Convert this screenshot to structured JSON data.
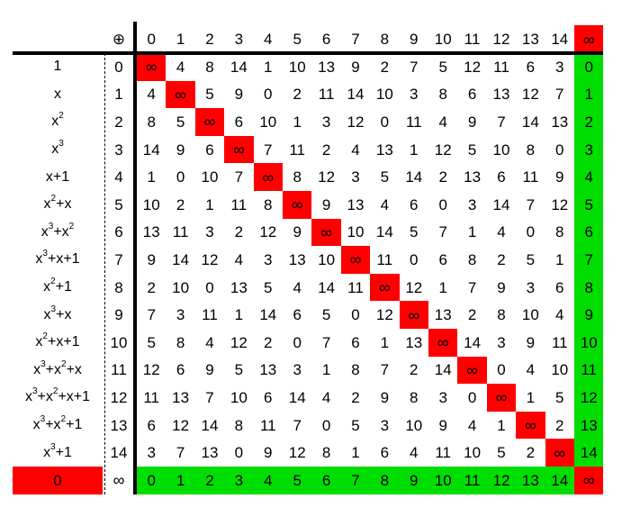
{
  "table": {
    "operator_symbol": "⊕",
    "infinity_symbol": "∞",
    "header_columns": [
      "0",
      "1",
      "2",
      "3",
      "4",
      "5",
      "6",
      "7",
      "8",
      "9",
      "10",
      "11",
      "12",
      "13",
      "14",
      "∞"
    ],
    "rows": [
      {
        "poly": "1",
        "index": "0",
        "cells": [
          "∞",
          "4",
          "8",
          "14",
          "1",
          "10",
          "13",
          "9",
          "2",
          "7",
          "5",
          "12",
          "11",
          "6",
          "3"
        ],
        "last": "0"
      },
      {
        "poly": "x",
        "index": "1",
        "cells": [
          "4",
          "∞",
          "5",
          "9",
          "0",
          "2",
          "11",
          "14",
          "10",
          "3",
          "8",
          "6",
          "13",
          "12",
          "7"
        ],
        "last": "1"
      },
      {
        "poly": "x^2",
        "index": "2",
        "cells": [
          "8",
          "5",
          "∞",
          "6",
          "10",
          "1",
          "3",
          "12",
          "0",
          "11",
          "4",
          "9",
          "7",
          "14",
          "13"
        ],
        "last": "2"
      },
      {
        "poly": "x^3",
        "index": "3",
        "cells": [
          "14",
          "9",
          "6",
          "∞",
          "7",
          "11",
          "2",
          "4",
          "13",
          "1",
          "12",
          "5",
          "10",
          "8",
          "0"
        ],
        "last": "3"
      },
      {
        "poly": "x+1",
        "index": "4",
        "cells": [
          "1",
          "0",
          "10",
          "7",
          "∞",
          "8",
          "12",
          "3",
          "5",
          "14",
          "2",
          "13",
          "6",
          "11",
          "9"
        ],
        "last": "4"
      },
      {
        "poly": "x^2+x",
        "index": "5",
        "cells": [
          "10",
          "2",
          "1",
          "11",
          "8",
          "∞",
          "9",
          "13",
          "4",
          "6",
          "0",
          "3",
          "14",
          "7",
          "12"
        ],
        "last": "5"
      },
      {
        "poly": "x^3+x^2",
        "index": "6",
        "cells": [
          "13",
          "11",
          "3",
          "2",
          "12",
          "9",
          "∞",
          "10",
          "14",
          "5",
          "7",
          "1",
          "4",
          "0",
          "8"
        ],
        "last": "6"
      },
      {
        "poly": "x^3+x+1",
        "index": "7",
        "cells": [
          "9",
          "14",
          "12",
          "4",
          "3",
          "13",
          "10",
          "∞",
          "11",
          "0",
          "6",
          "8",
          "2",
          "5",
          "1"
        ],
        "last": "7"
      },
      {
        "poly": "x^2+1",
        "index": "8",
        "cells": [
          "2",
          "10",
          "0",
          "13",
          "5",
          "4",
          "14",
          "11",
          "∞",
          "12",
          "1",
          "7",
          "9",
          "3",
          "6"
        ],
        "last": "8"
      },
      {
        "poly": "x^3+x",
        "index": "9",
        "cells": [
          "7",
          "3",
          "11",
          "1",
          "14",
          "6",
          "5",
          "0",
          "12",
          "∞",
          "13",
          "2",
          "8",
          "10",
          "4"
        ],
        "last": "9"
      },
      {
        "poly": "x^2+x+1",
        "index": "10",
        "cells": [
          "5",
          "8",
          "4",
          "12",
          "2",
          "0",
          "7",
          "6",
          "1",
          "13",
          "∞",
          "14",
          "3",
          "9",
          "11"
        ],
        "last": "10"
      },
      {
        "poly": "x^3+x^2+x",
        "index": "11",
        "cells": [
          "12",
          "6",
          "9",
          "5",
          "13",
          "3",
          "1",
          "8",
          "7",
          "2",
          "14",
          "∞",
          "0",
          "4",
          "10"
        ],
        "last": "11"
      },
      {
        "poly": "x^3+x^2+x+1",
        "index": "12",
        "cells": [
          "11",
          "13",
          "7",
          "10",
          "6",
          "14",
          "4",
          "2",
          "9",
          "8",
          "3",
          "0",
          "∞",
          "1",
          "5"
        ],
        "last": "12"
      },
      {
        "poly": "x^3+x^2+1",
        "index": "13",
        "cells": [
          "6",
          "12",
          "14",
          "8",
          "11",
          "7",
          "0",
          "5",
          "3",
          "10",
          "9",
          "4",
          "1",
          "∞",
          "2"
        ],
        "last": "13"
      },
      {
        "poly": "x^3+1",
        "index": "14",
        "cells": [
          "3",
          "7",
          "13",
          "0",
          "9",
          "12",
          "8",
          "1",
          "6",
          "4",
          "11",
          "10",
          "5",
          "2",
          "∞"
        ],
        "last": "14"
      }
    ],
    "bottom_row": {
      "poly": "0",
      "index": "∞",
      "cells": [
        "0",
        "1",
        "2",
        "3",
        "4",
        "5",
        "6",
        "7",
        "8",
        "9",
        "10",
        "11",
        "12",
        "13",
        "14"
      ],
      "last": "∞"
    },
    "colors": {
      "red": "#ff0000",
      "green": "#00dd00"
    }
  }
}
